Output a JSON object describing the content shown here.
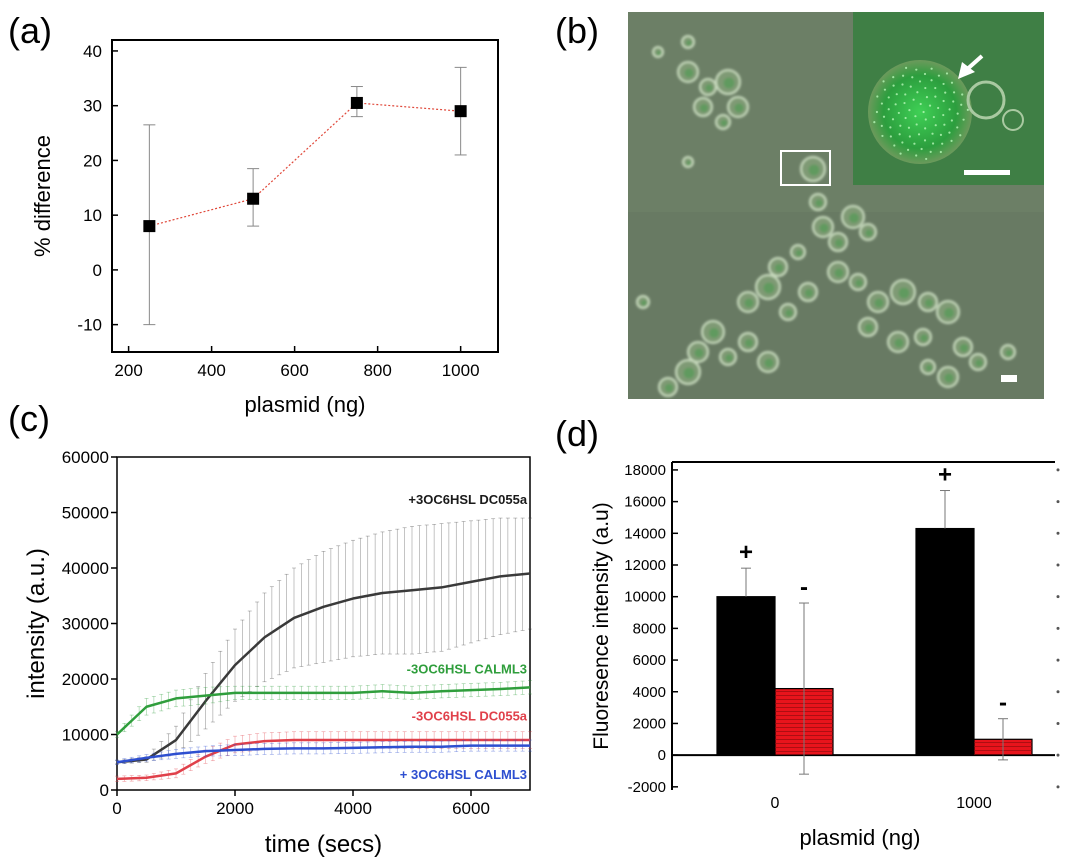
{
  "panels": {
    "a": "(a)",
    "b": "(b)",
    "c": "(c)",
    "d": "(d)"
  },
  "chart_data": [
    {
      "panel": "(a)",
      "type": "scatter",
      "xlabel": "plasmid (ng)",
      "ylabel": "% difference",
      "xlim": [
        160,
        1090
      ],
      "ylim": [
        -15,
        42
      ],
      "xticks": [
        200,
        400,
        600,
        800,
        1000
      ],
      "yticks": [
        -10,
        0,
        10,
        20,
        30,
        40
      ],
      "x": [
        250,
        500,
        750,
        1000
      ],
      "y": [
        8,
        13,
        30.5,
        29
      ],
      "err_low": [
        -10,
        8,
        28,
        21
      ],
      "err_high": [
        26.5,
        18.5,
        33.5,
        37
      ],
      "marker": "square",
      "line_color": "#e0483a",
      "line_style": "dotted"
    },
    {
      "panel": "(b)",
      "type": "image",
      "description_colors": {
        "background": "#6c7f66",
        "fluorescence": "#37d24a"
      }
    },
    {
      "panel": "(c)",
      "type": "line",
      "xlabel": "time (secs)",
      "ylabel": "intensity (a.u.)",
      "xlim": [
        0,
        7000
      ],
      "ylim": [
        0,
        60000
      ],
      "xticks": [
        0,
        2000,
        4000,
        6000
      ],
      "yticks": [
        0,
        10000,
        20000,
        30000,
        40000,
        50000,
        60000
      ],
      "series": [
        {
          "name": "+3OC6HSL DC055a",
          "color": "#3a3a3a",
          "x": [
            0,
            500,
            1000,
            1500,
            2000,
            2500,
            3000,
            3500,
            4000,
            4500,
            5000,
            5500,
            6000,
            6500,
            7000
          ],
          "y": [
            5000,
            5500,
            9000,
            16000,
            22500,
            27500,
            31000,
            33000,
            34500,
            35500,
            36000,
            36500,
            37500,
            38500,
            39000
          ],
          "err": [
            300,
            500,
            2500,
            5000,
            6500,
            8000,
            9000,
            10000,
            10500,
            11000,
            11500,
            11500,
            11000,
            10500,
            10000
          ]
        },
        {
          "name": "-3OC6HSL CALML3",
          "color": "#2f9e3c",
          "x": [
            0,
            500,
            1000,
            1500,
            2000,
            2500,
            3000,
            3500,
            4000,
            4500,
            5000,
            5500,
            6000,
            6500,
            7000
          ],
          "y": [
            10000,
            15000,
            16500,
            17000,
            17500,
            17500,
            17500,
            17500,
            17500,
            17800,
            17500,
            17800,
            18000,
            18200,
            18500
          ],
          "err": [
            500,
            1500,
            1500,
            1500,
            1200,
            1200,
            1200,
            1200,
            1200,
            1200,
            1200,
            1200,
            1200,
            1200,
            1200
          ]
        },
        {
          "name": "-3OC6HSL DC055a",
          "color": "#e0404a",
          "x": [
            0,
            500,
            1000,
            1500,
            2000,
            2500,
            3000,
            3500,
            4000,
            4500,
            5000,
            5500,
            6000,
            6500,
            7000
          ],
          "y": [
            2000,
            2200,
            3000,
            6000,
            8200,
            8800,
            9000,
            9000,
            9000,
            9000,
            9000,
            9000,
            9000,
            9000,
            9000
          ],
          "err": [
            500,
            500,
            800,
            1200,
            1500,
            1500,
            1500,
            1500,
            1500,
            1500,
            1500,
            1500,
            1500,
            1500,
            1500
          ]
        },
        {
          "name": "+ 3OC6HSL CALML3",
          "color": "#2e4fd0",
          "x": [
            0,
            500,
            1000,
            1500,
            2000,
            2500,
            3000,
            3500,
            4000,
            4500,
            5000,
            5500,
            6000,
            6500,
            7000
          ],
          "y": [
            5000,
            5800,
            6500,
            7000,
            7200,
            7400,
            7500,
            7500,
            7600,
            7700,
            7800,
            7800,
            8000,
            8000,
            8000
          ],
          "err": [
            400,
            600,
            800,
            900,
            1000,
            1000,
            1000,
            1000,
            1000,
            1000,
            1000,
            1000,
            1000,
            1000,
            1000
          ]
        }
      ],
      "labels": [
        {
          "text": "+3OC6HSL DC055a",
          "color": "#1a1a1a",
          "x": 6950,
          "y": 51500
        },
        {
          "text": "-3OC6HSL CALML3",
          "color": "#2f9e3c",
          "x": 6950,
          "y": 21000
        },
        {
          "text": "-3OC6HSL DC055a",
          "color": "#e0404a",
          "x": 6950,
          "y": 12500
        },
        {
          "text": "+ 3OC6HSL CALML3",
          "color": "#2e4fd0",
          "x": 6950,
          "y": 2000
        }
      ]
    },
    {
      "panel": "(d)",
      "type": "bar",
      "xlabel": "plasmid (ng)",
      "ylabel": "Fluoresence intensity (a.u)",
      "categories": [
        "0",
        "1000"
      ],
      "ylim": [
        -2200,
        18500
      ],
      "yticks": [
        -2000,
        0,
        2000,
        4000,
        6000,
        8000,
        10000,
        12000,
        14000,
        16000,
        18000
      ],
      "series": [
        {
          "name": "+",
          "color": "#000000",
          "values": [
            10000,
            14300
          ],
          "err": [
            1800,
            2400
          ]
        },
        {
          "name": "-",
          "color": "#e8141c",
          "values": [
            4200,
            1000
          ],
          "err": [
            5400,
            1300
          ]
        }
      ]
    }
  ]
}
